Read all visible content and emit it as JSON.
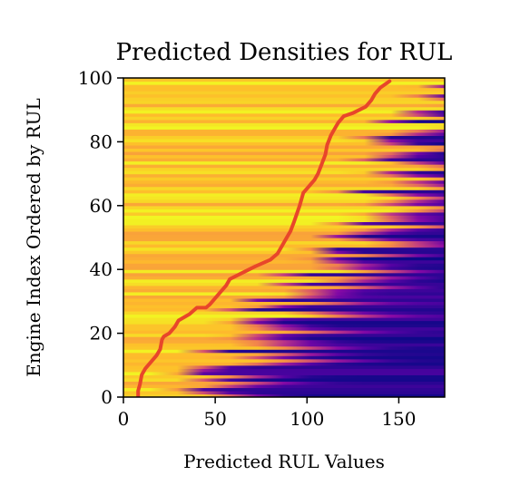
{
  "chart_data": {
    "type": "heatmap",
    "title": "Predicted Densities for RUL",
    "xlabel": "Predicted RUL Values",
    "ylabel": "Engine Index Ordered by RUL",
    "xlim": [
      0,
      175
    ],
    "ylim": [
      0,
      100
    ],
    "xticks": [
      0,
      50,
      100,
      150
    ],
    "yticks": [
      0,
      20,
      40,
      60,
      80,
      100
    ],
    "colormap": "plasma",
    "grid": false,
    "series": [
      {
        "line_color": "#e8462a",
        "x": [
          8,
          8,
          9,
          10,
          12,
          15,
          18,
          20,
          21,
          22,
          25,
          28,
          30,
          36,
          40,
          45,
          47,
          50,
          53,
          56,
          58,
          65,
          72,
          80,
          84,
          87,
          89,
          91,
          93,
          96,
          98,
          101,
          104,
          106,
          108,
          110,
          111,
          113,
          115,
          117,
          120,
          125,
          132,
          135,
          137,
          140,
          145
        ],
        "y": [
          0,
          2,
          4,
          7,
          9,
          11,
          13,
          15,
          18,
          19,
          20,
          22,
          24,
          26,
          28,
          28,
          29,
          31,
          33,
          35,
          37,
          39,
          41,
          43,
          45,
          48,
          50,
          52,
          55,
          60,
          64,
          66,
          68,
          70,
          73,
          76,
          79,
          82,
          84,
          86,
          88,
          89,
          91,
          93,
          95,
          97,
          99
        ]
      }
    ]
  }
}
